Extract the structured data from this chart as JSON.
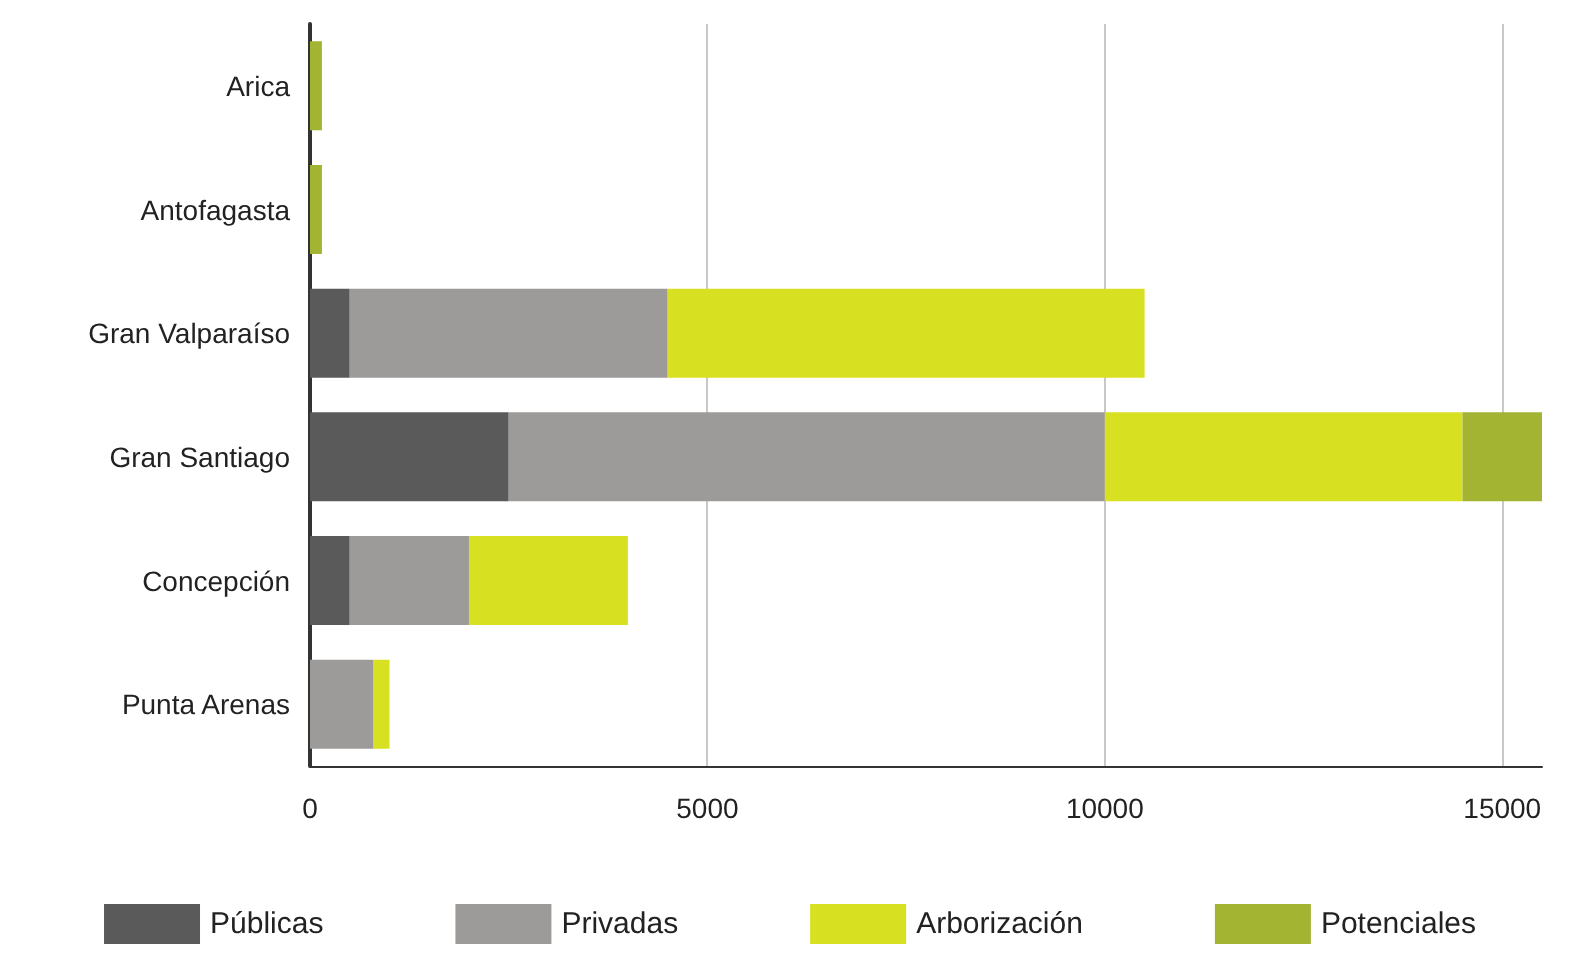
{
  "chart_data": {
    "type": "bar",
    "orientation": "horizontal",
    "stacked": true,
    "categories": [
      "Arica",
      "Antofagasta",
      "Gran Valparaíso",
      "Gran Santiago",
      "Concepción",
      "Punta Arenas"
    ],
    "series": [
      {
        "name": "Públicas",
        "color": "#5a5a5a",
        "values": [
          0,
          0,
          500,
          2500,
          500,
          0
        ]
      },
      {
        "name": "Privadas",
        "color": "#9c9b99",
        "values": [
          0,
          0,
          4000,
          7500,
          1500,
          800
        ]
      },
      {
        "name": "Arborización",
        "color": "#d8e022",
        "values": [
          0,
          0,
          6000,
          4500,
          2000,
          200
        ]
      },
      {
        "name": "Potenciales",
        "color": "#a3b332",
        "values": [
          150,
          150,
          0,
          1000,
          0,
          0
        ]
      }
    ],
    "xlim": [
      0,
      15500
    ],
    "xticks": [
      0,
      5000,
      10000,
      15000
    ],
    "grid": "x",
    "legend": "bottom"
  }
}
